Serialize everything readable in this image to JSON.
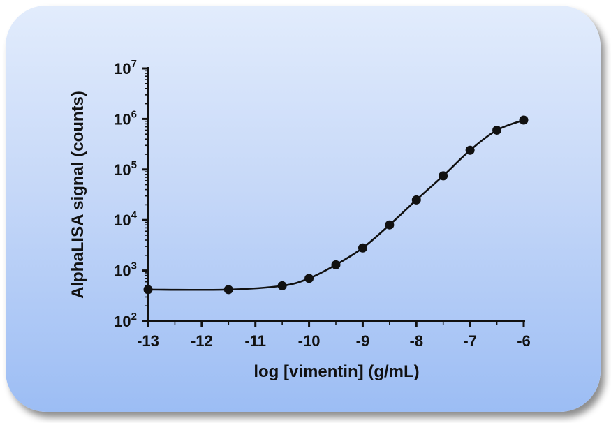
{
  "chart_data": {
    "type": "scatter",
    "title": "",
    "xlabel": "log [vimentin] (g/mL)",
    "ylabel": "AlphaLISA signal (counts)",
    "xlim": [
      -13,
      -6
    ],
    "ylim": [
      100,
      10000000
    ],
    "y_scale": "log",
    "grid": false,
    "legend": "none",
    "x_ticks": [
      -13,
      -12,
      -11,
      -10,
      -9,
      -8,
      -7,
      -6
    ],
    "x_tick_labels": [
      "-13",
      "-12",
      "-11",
      "-10",
      "-9",
      "-8",
      "-7",
      "-6"
    ],
    "y_ticks": [
      {
        "value": 100,
        "base": "10",
        "exp": "2"
      },
      {
        "value": 1000,
        "base": "10",
        "exp": "3"
      },
      {
        "value": 10000,
        "base": "10",
        "exp": "4"
      },
      {
        "value": 100000,
        "base": "10",
        "exp": "5"
      },
      {
        "value": 1000000,
        "base": "10",
        "exp": "6"
      },
      {
        "value": 10000000,
        "base": "10",
        "exp": "7"
      }
    ],
    "points": [
      {
        "x": -13,
        "y": 420
      },
      {
        "x": -11.5,
        "y": 420
      },
      {
        "x": -10.5,
        "y": 500
      },
      {
        "x": -10,
        "y": 700
      },
      {
        "x": -9.5,
        "y": 1300
      },
      {
        "x": -9,
        "y": 2800
      },
      {
        "x": -8.5,
        "y": 8000
      },
      {
        "x": -8,
        "y": 25000
      },
      {
        "x": -7.5,
        "y": 75000
      },
      {
        "x": -7,
        "y": 240000
      },
      {
        "x": -6.5,
        "y": 600000
      },
      {
        "x": -6,
        "y": 950000
      }
    ],
    "fit_curve": "sigmoidal",
    "colors": {
      "marker": "#111111",
      "line": "#111111",
      "axis": "#111111"
    }
  }
}
